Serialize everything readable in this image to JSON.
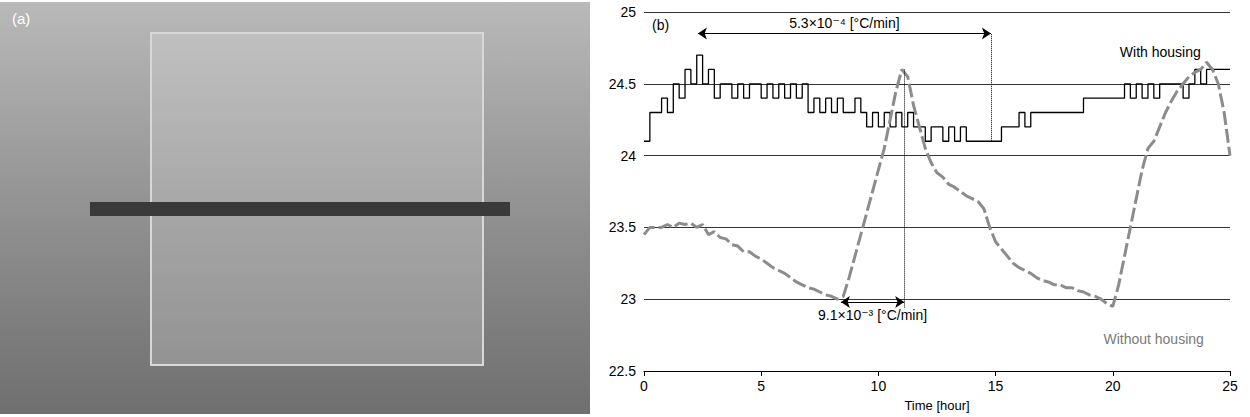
{
  "panel_a": {
    "label": "(a)"
  },
  "chart_data": {
    "type": "line",
    "panel_label": "(b)",
    "x_label": "Time [hour]",
    "x": [
      0,
      0.25,
      0.5,
      0.75,
      1,
      1.25,
      1.5,
      1.75,
      2,
      2.25,
      2.5,
      2.75,
      3,
      3.25,
      3.5,
      3.75,
      4,
      4.25,
      4.5,
      4.75,
      5,
      5.25,
      5.5,
      5.75,
      6,
      6.25,
      6.5,
      6.75,
      7,
      7.25,
      7.5,
      7.75,
      8,
      8.25,
      8.5,
      8.75,
      9,
      9.25,
      9.5,
      9.75,
      10,
      10.25,
      10.5,
      10.75,
      11,
      11.25,
      11.5,
      11.75,
      12,
      12.25,
      12.5,
      12.75,
      13,
      13.25,
      13.5,
      13.75,
      14,
      14.25,
      14.5,
      14.75,
      15,
      15.25,
      15.5,
      15.75,
      16,
      16.25,
      16.5,
      16.75,
      17,
      17.25,
      17.5,
      17.75,
      18,
      18.25,
      18.5,
      18.75,
      19,
      19.25,
      19.5,
      19.75,
      20,
      20.25,
      20.5,
      20.75,
      21,
      21.25,
      21.5,
      21.75,
      22,
      22.25,
      22.5,
      22.75,
      23,
      23.25,
      23.5,
      23.75,
      24,
      24.25,
      24.5,
      24.75,
      25
    ],
    "series": [
      {
        "name": "With housing",
        "color": "#000000",
        "line_style": "steps",
        "values": [
          24.1,
          24.3,
          24.3,
          24.4,
          24.3,
          24.5,
          24.4,
          24.6,
          24.5,
          24.7,
          24.5,
          24.6,
          24.4,
          24.5,
          24.5,
          24.4,
          24.5,
          24.4,
          24.5,
          24.5,
          24.4,
          24.5,
          24.4,
          24.5,
          24.4,
          24.5,
          24.4,
          24.5,
          24.3,
          24.4,
          24.3,
          24.4,
          24.3,
          24.4,
          24.3,
          24.3,
          24.4,
          24.3,
          24.2,
          24.3,
          24.2,
          24.3,
          24.2,
          24.3,
          24.2,
          24.3,
          24.2,
          24.2,
          24.1,
          24.2,
          24.2,
          24.1,
          24.2,
          24.1,
          24.2,
          24.1,
          24.1,
          24.1,
          24.1,
          24.1,
          24.1,
          24.2,
          24.2,
          24.2,
          24.3,
          24.2,
          24.3,
          24.3,
          24.3,
          24.3,
          24.3,
          24.3,
          24.3,
          24.3,
          24.3,
          24.4,
          24.4,
          24.4,
          24.4,
          24.4,
          24.4,
          24.4,
          24.5,
          24.4,
          24.5,
          24.4,
          24.5,
          24.4,
          24.5,
          24.5,
          24.5,
          24.5,
          24.4,
          24.5,
          24.6,
          24.5,
          24.6,
          24.6,
          24.6,
          24.6,
          24.6
        ]
      },
      {
        "name": "Without housing",
        "color": "#8c8c8c",
        "line_style": "dashed",
        "values": [
          23.45,
          23.5,
          23.5,
          23.5,
          23.52,
          23.5,
          23.53,
          23.52,
          23.53,
          23.5,
          23.52,
          23.45,
          23.47,
          23.43,
          23.42,
          23.38,
          23.37,
          23.33,
          23.33,
          23.3,
          23.28,
          23.25,
          23.22,
          23.2,
          23.18,
          23.15,
          23.12,
          23.1,
          23.08,
          23.07,
          23.05,
          23.03,
          23.02,
          23.0,
          23.02,
          23.15,
          23.3,
          23.45,
          23.6,
          23.75,
          23.9,
          24.05,
          24.25,
          24.45,
          24.6,
          24.55,
          24.35,
          24.2,
          24.05,
          23.95,
          23.88,
          23.85,
          23.8,
          23.78,
          23.75,
          23.72,
          23.7,
          23.68,
          23.63,
          23.5,
          23.4,
          23.35,
          23.3,
          23.25,
          23.22,
          23.2,
          23.18,
          23.15,
          23.13,
          23.12,
          23.1,
          23.1,
          23.08,
          23.08,
          23.06,
          23.05,
          23.03,
          23.02,
          23.0,
          22.97,
          22.95,
          23.1,
          23.3,
          23.5,
          23.7,
          23.9,
          24.05,
          24.1,
          24.2,
          24.3,
          24.38,
          24.45,
          24.5,
          24.55,
          24.58,
          24.6,
          24.65,
          24.6,
          24.5,
          24.3,
          24.0
        ]
      }
    ],
    "xlim": [
      0,
      25
    ],
    "xticks": [
      0,
      5,
      10,
      15,
      20,
      25
    ],
    "ylim": [
      22.5,
      25
    ],
    "yticks": [
      22.5,
      23,
      23.5,
      24,
      24.5,
      25
    ],
    "grid": true,
    "annotations": [
      {
        "text": "5.3×10⁻⁴ [°C/min]",
        "arrow_x": [
          2.3,
          14.8
        ],
        "arrow_y": 24.85,
        "guide_x": 14.8,
        "guide_y": [
          24.1,
          24.85
        ]
      },
      {
        "text": "9.1×10⁻³ [°C/min]",
        "arrow_x": [
          8.4,
          11.1
        ],
        "arrow_y": 22.98,
        "guide_x": 11.1,
        "guide_y": [
          22.88,
          24.6
        ]
      }
    ]
  }
}
